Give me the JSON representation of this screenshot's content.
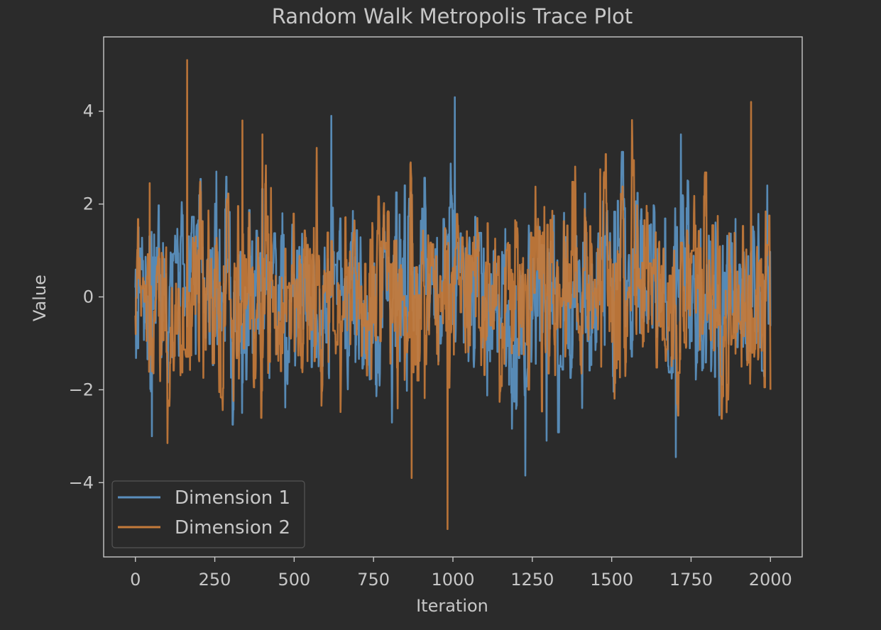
{
  "chart_data": {
    "type": "line",
    "title": "Random Walk Metropolis Trace Plot",
    "xlabel": "Iteration",
    "ylabel": "Value",
    "xlim": [
      -100,
      2100
    ],
    "ylim": [
      -5.6,
      5.6
    ],
    "x_ticks": [
      0,
      250,
      500,
      750,
      1000,
      1250,
      1500,
      1750,
      2000
    ],
    "x_tick_labels": [
      "0",
      "250",
      "500",
      "750",
      "1000",
      "1250",
      "1500",
      "1750",
      "2000"
    ],
    "y_ticks": [
      -4,
      -2,
      0,
      2,
      4
    ],
    "y_tick_labels": [
      "−4",
      "−2",
      "0",
      "2",
      "4"
    ],
    "grid": false,
    "legend_position": "lower-left",
    "n_points": 2001,
    "series": [
      {
        "name": "Dimension 1",
        "color": "#5a8fbd",
        "generator": {
          "type": "seeded-random-walk-metropolis",
          "seed": 17,
          "step": 1.25
        },
        "notable_points": [
          {
            "x": 0,
            "y": 0.2
          },
          {
            "x": 10,
            "y": 1.5
          },
          {
            "x": 52,
            "y": -3.0
          },
          {
            "x": 255,
            "y": 2.7
          },
          {
            "x": 617,
            "y": 3.9
          },
          {
            "x": 1006,
            "y": 4.3
          },
          {
            "x": 1718,
            "y": 3.5
          },
          {
            "x": 1702,
            "y": -3.45
          },
          {
            "x": 1990,
            "y": 2.4
          }
        ]
      },
      {
        "name": "Dimension 2",
        "color": "#c47a3a",
        "generator": {
          "type": "seeded-random-walk-metropolis",
          "seed": 91,
          "step": 1.25
        },
        "notable_points": [
          {
            "x": 0,
            "y": -0.4
          },
          {
            "x": 45,
            "y": 2.45
          },
          {
            "x": 163,
            "y": 5.1
          },
          {
            "x": 337,
            "y": 3.8
          },
          {
            "x": 400,
            "y": 3.5
          },
          {
            "x": 870,
            "y": -3.9
          },
          {
            "x": 983,
            "y": -5.0
          },
          {
            "x": 1939,
            "y": 4.2
          },
          {
            "x": 2000,
            "y": -2.0
          }
        ]
      }
    ]
  }
}
